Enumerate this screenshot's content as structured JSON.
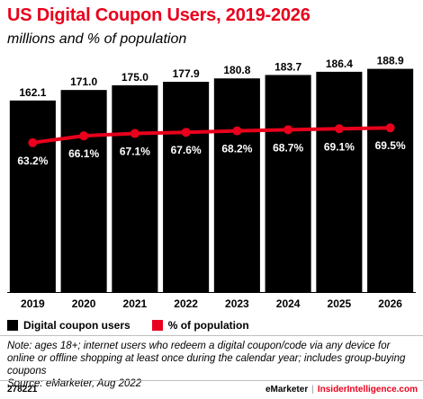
{
  "chart_data": {
    "type": "bar",
    "title": "US Digital Coupon Users, 2019-2026",
    "subtitle": "millions and % of population",
    "categories": [
      "2019",
      "2020",
      "2021",
      "2022",
      "2023",
      "2024",
      "2025",
      "2026"
    ],
    "series": [
      {
        "name": "Digital coupon users",
        "type": "bar",
        "values": [
          162.1,
          171.0,
          175.0,
          177.9,
          180.8,
          183.7,
          186.4,
          188.9
        ],
        "labels": [
          "162.1",
          "171.0",
          "175.0",
          "177.9",
          "180.8",
          "183.7",
          "186.4",
          "188.9"
        ],
        "color": "#000000"
      },
      {
        "name": "% of population",
        "type": "line",
        "values": [
          63.2,
          66.1,
          67.1,
          67.6,
          68.2,
          68.7,
          69.1,
          69.5
        ],
        "labels": [
          "63.2%",
          "66.1%",
          "67.1%",
          "67.6%",
          "68.2%",
          "68.7%",
          "69.1%",
          "69.5%"
        ],
        "color": "#e8001c"
      }
    ],
    "bar_ylim": [
      0,
      200
    ],
    "line_ylim": [
      0,
      100
    ],
    "grid": false,
    "legend": "bottom-left"
  },
  "note": "Note: ages 18+; internet users who redeem a digital coupon/code via any device for online or offline shopping at least once during the calendar year; includes group-buying coupons",
  "source": "Source: eMarketer, Aug 2022",
  "footer": {
    "id": "278221",
    "brand1": "eMarketer",
    "separator": "|",
    "brand2": "InsiderIntelligence.com"
  }
}
